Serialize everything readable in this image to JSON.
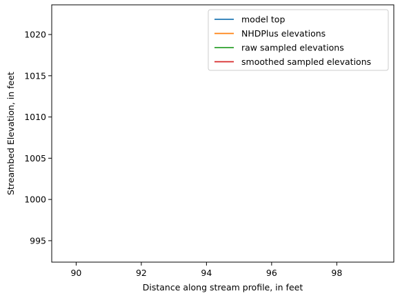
{
  "chart_data": {
    "type": "line",
    "title": "",
    "xlabel": "Distance along stream profile, in feet",
    "ylabel": "Streambed Elevation, in feet",
    "xlim": [
      89.25,
      99.75
    ],
    "ylim": [
      992.4,
      1023.6
    ],
    "xticks": [
      90,
      92,
      94,
      96,
      98
    ],
    "yticks": [
      995,
      1000,
      1005,
      1010,
      1015,
      1020
    ],
    "grid": false,
    "legend_position": "top-right",
    "series": [
      {
        "name": "model top",
        "color": "#1f77b4",
        "x": [],
        "y": []
      },
      {
        "name": "NHDPlus elevations",
        "color": "#ff7f0e",
        "x": [],
        "y": []
      },
      {
        "name": "raw sampled elevations",
        "color": "#2ca02c",
        "x": [],
        "y": []
      },
      {
        "name": "smoothed sampled elevations",
        "color": "#d62728",
        "x": [],
        "y": []
      }
    ]
  }
}
